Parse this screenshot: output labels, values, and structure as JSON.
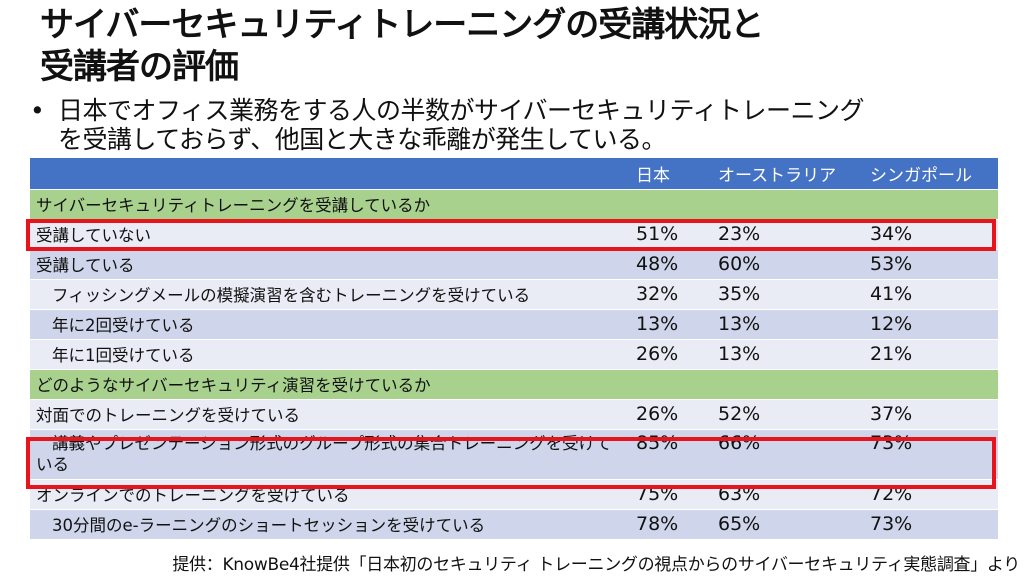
{
  "title": {
    "line1": "サイバーセキュリティトレーニングの受講状況と",
    "line2": "受講者の評価"
  },
  "bullet": {
    "symbol": "•",
    "line1": "日本でオフィス業務をする人の半数がサイバーセキュリティトレーニング",
    "line2": "を受講しておらず、他国と大きな乖離が発生している。"
  },
  "table": {
    "headers": [
      "",
      "日本",
      "オーストラリア",
      "シンガポール"
    ],
    "section1": "サイバーセキュリティトレーニングを受講しているか",
    "rows1": [
      {
        "label": "受講していない",
        "values": [
          "51%",
          "23%",
          "34%"
        ]
      },
      {
        "label": "受講している",
        "values": [
          "48%",
          "60%",
          "53%"
        ]
      },
      {
        "label": "フィッシングメールの模擬演習を含むトレーニングを受けている",
        "values": [
          "32%",
          "35%",
          "41%"
        ]
      },
      {
        "label": "年に2回受けている",
        "values": [
          "13%",
          "13%",
          "12%"
        ]
      },
      {
        "label": "年に1回受けている",
        "values": [
          "26%",
          "13%",
          "21%"
        ]
      }
    ],
    "section2": "どのようなサイバーセキュリティ演習を受けているか",
    "rows2": [
      {
        "label": "対面でのトレーニングを受けている",
        "values": [
          "26%",
          "52%",
          "37%"
        ]
      },
      {
        "label": "講義やプレゼンテーション形式のグループ形式の集合トレーニングを受けている",
        "values": [
          "85%",
          "66%",
          "73%"
        ]
      },
      {
        "label": "オンラインでのトレーニングを受けている",
        "values": [
          "75%",
          "63%",
          "72%"
        ]
      },
      {
        "label": "30分間のe-ラーニングのショートセッションを受けている",
        "values": [
          "78%",
          "65%",
          "73%"
        ]
      }
    ]
  },
  "footer": "提供：KnowBe4社提供「日本初のセキュリティ トレーニングの視点からのサイバーセキュリティ実態調査」より",
  "colors": {
    "header": "#4472c4",
    "section": "#a9d18e",
    "row_light": "#e9ebf5",
    "row_dark": "#cfd5ea",
    "highlight": "#e8141c"
  }
}
